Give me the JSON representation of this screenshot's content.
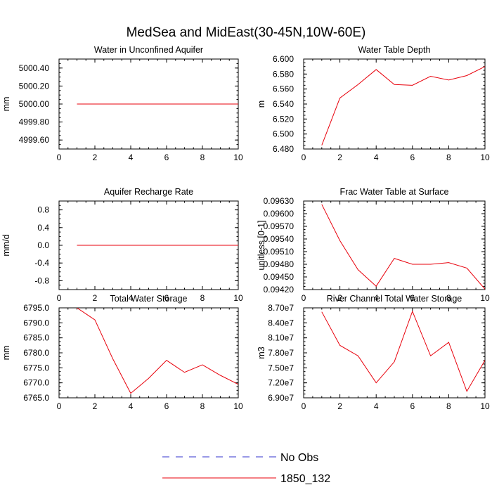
{
  "figure": {
    "title": "MedSea and MidEast(30-45N,10W-60E)"
  },
  "legend": {
    "entries": [
      {
        "label": "No Obs",
        "color": "#3333cc",
        "dash": true
      },
      {
        "label": "1850_132",
        "color": "#e8000b",
        "dash": false
      }
    ]
  },
  "chart_data": [
    {
      "type": "line",
      "title": "Water in Unconfined Aquifer",
      "ylabel": "mm",
      "xlim": [
        0,
        10
      ],
      "ylim": [
        4999.5,
        5000.5
      ],
      "xticks": [
        "0",
        "2",
        "4",
        "6",
        "8",
        "10"
      ],
      "yticks": [
        {
          "v": 4999.6,
          "label": "4999.60"
        },
        {
          "v": 4999.8,
          "label": "4999.80"
        },
        {
          "v": 5000.0,
          "label": "5000.00"
        },
        {
          "v": 5000.2,
          "label": "5000.20"
        },
        {
          "v": 5000.4,
          "label": "5000.40"
        }
      ],
      "series": [
        {
          "name": "1850_132",
          "color": "#e8000b",
          "x": [
            1,
            2,
            3,
            4,
            5,
            6,
            7,
            8,
            9,
            10
          ],
          "y": [
            5000.0,
            5000.0,
            5000.0,
            5000.0,
            5000.0,
            5000.0,
            5000.0,
            5000.0,
            5000.0,
            5000.0
          ]
        }
      ]
    },
    {
      "type": "line",
      "title": "Water Table Depth",
      "ylabel": "m",
      "xlim": [
        0,
        10
      ],
      "ylim": [
        6.48,
        6.6
      ],
      "xticks": [
        "0",
        "2",
        "4",
        "6",
        "8",
        "10"
      ],
      "yticks": [
        {
          "v": 6.48,
          "label": "6.480"
        },
        {
          "v": 6.5,
          "label": "6.500"
        },
        {
          "v": 6.52,
          "label": "6.520"
        },
        {
          "v": 6.54,
          "label": "6.540"
        },
        {
          "v": 6.56,
          "label": "6.560"
        },
        {
          "v": 6.58,
          "label": "6.580"
        },
        {
          "v": 6.6,
          "label": "6.600"
        }
      ],
      "series": [
        {
          "name": "1850_132",
          "color": "#e8000b",
          "x": [
            1,
            2,
            3,
            4,
            5,
            6,
            7,
            8,
            9,
            10
          ],
          "y": [
            6.485,
            6.548,
            6.566,
            6.586,
            6.566,
            6.565,
            6.577,
            6.572,
            6.578,
            6.59
          ]
        }
      ]
    },
    {
      "type": "line",
      "title": "Aquifer Recharge Rate",
      "ylabel": "mm/d",
      "xlim": [
        0,
        10
      ],
      "ylim": [
        -1.0,
        1.0
      ],
      "xticks": [
        "0",
        "2",
        "4",
        "6",
        "8",
        "10"
      ],
      "yticks": [
        {
          "v": -0.8,
          "label": "-0.8"
        },
        {
          "v": -0.4,
          "label": "-0.4"
        },
        {
          "v": 0.0,
          "label": "0.0"
        },
        {
          "v": 0.4,
          "label": "0.4"
        },
        {
          "v": 0.8,
          "label": "0.8"
        }
      ],
      "series": [
        {
          "name": "1850_132",
          "color": "#e8000b",
          "x": [
            1,
            2,
            3,
            4,
            5,
            6,
            7,
            8,
            9,
            10
          ],
          "y": [
            0,
            0,
            0,
            0,
            0,
            0,
            0,
            0,
            0,
            0
          ]
        }
      ]
    },
    {
      "type": "line",
      "title": "Frac Water Table at Surface",
      "ylabel": "unitless [0-1]",
      "xlim": [
        0,
        10
      ],
      "ylim": [
        0.0942,
        0.0963
      ],
      "xticks": [
        "0",
        "2",
        "4",
        "6",
        "8",
        "10"
      ],
      "yticks": [
        {
          "v": 0.0942,
          "label": "0.09420"
        },
        {
          "v": 0.0945,
          "label": "0.09450"
        },
        {
          "v": 0.0948,
          "label": "0.09480"
        },
        {
          "v": 0.0951,
          "label": "0.09510"
        },
        {
          "v": 0.0954,
          "label": "0.09540"
        },
        {
          "v": 0.0957,
          "label": "0.09570"
        },
        {
          "v": 0.096,
          "label": "0.09600"
        },
        {
          "v": 0.0963,
          "label": "0.09630"
        }
      ],
      "series": [
        {
          "name": "1850_132",
          "color": "#e8000b",
          "x": [
            1,
            2,
            3,
            4,
            5,
            6,
            7,
            8,
            9,
            10
          ],
          "y": [
            0.09622,
            0.09536,
            0.09467,
            0.09428,
            0.09494,
            0.0948,
            0.0948,
            0.09484,
            0.09471,
            0.09421
          ]
        }
      ]
    },
    {
      "type": "line",
      "title": "Total Water Storage",
      "ylabel": "mm",
      "xlim": [
        0,
        10
      ],
      "ylim": [
        6765.0,
        6795.0
      ],
      "xticks": [
        "0",
        "2",
        "4",
        "6",
        "8",
        "10"
      ],
      "yticks": [
        {
          "v": 6765,
          "label": "6765.0"
        },
        {
          "v": 6770,
          "label": "6770.0"
        },
        {
          "v": 6775,
          "label": "6775.0"
        },
        {
          "v": 6780,
          "label": "6780.0"
        },
        {
          "v": 6785,
          "label": "6785.0"
        },
        {
          "v": 6790,
          "label": "6790.0"
        },
        {
          "v": 6795,
          "label": "6795.0"
        }
      ],
      "series": [
        {
          "name": "1850_132",
          "color": "#e8000b",
          "x": [
            1,
            2,
            3,
            4,
            5,
            6,
            7,
            8,
            9,
            10
          ],
          "y": [
            6795.0,
            6791.0,
            6778.0,
            6766.5,
            6771.5,
            6777.5,
            6773.5,
            6776.0,
            6772.5,
            6769.5
          ]
        }
      ]
    },
    {
      "type": "line",
      "title": "River Channel Total Water Storage",
      "ylabel": "m3",
      "xlim": [
        0,
        10
      ],
      "ylim": [
        69000000,
        87000000
      ],
      "xticks": [
        "0",
        "2",
        "4",
        "6",
        "8",
        "10"
      ],
      "yticks": [
        {
          "v": 69000000,
          "label": "6.90e7"
        },
        {
          "v": 72000000,
          "label": "7.20e7"
        },
        {
          "v": 75000000,
          "label": "7.50e7"
        },
        {
          "v": 78000000,
          "label": "7.80e7"
        },
        {
          "v": 81000000,
          "label": "8.10e7"
        },
        {
          "v": 84000000,
          "label": "8.40e7"
        },
        {
          "v": 87000000,
          "label": "8.70e7"
        }
      ],
      "series": [
        {
          "name": "1850_132",
          "color": "#e8000b",
          "x": [
            1,
            2,
            3,
            4,
            5,
            6,
            7,
            8,
            9,
            10
          ],
          "y": [
            86200000,
            79500000,
            77400000,
            72000000,
            76200000,
            86300000,
            77400000,
            80100000,
            70300000,
            76500000
          ]
        }
      ]
    }
  ]
}
